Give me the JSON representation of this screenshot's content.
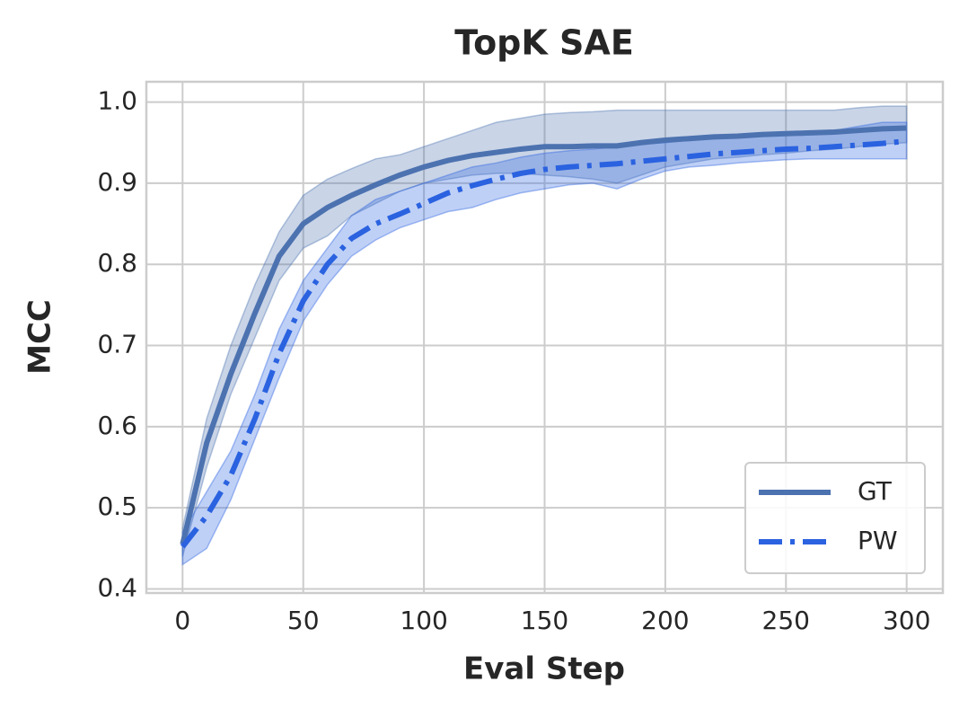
{
  "chart_data": {
    "type": "line",
    "title": "TopK SAE",
    "xlabel": "Eval Step",
    "ylabel": "MCC",
    "x": [
      0,
      10,
      20,
      30,
      40,
      50,
      60,
      70,
      80,
      90,
      100,
      110,
      120,
      130,
      140,
      150,
      160,
      170,
      180,
      190,
      200,
      210,
      220,
      230,
      240,
      250,
      260,
      270,
      280,
      290,
      300
    ],
    "series": [
      {
        "name": "GT",
        "color": "#4c72b0",
        "linestyle": "solid",
        "values": [
          0.455,
          0.58,
          0.665,
          0.74,
          0.81,
          0.85,
          0.87,
          0.885,
          0.898,
          0.91,
          0.92,
          0.928,
          0.934,
          0.938,
          0.942,
          0.945,
          0.945,
          0.946,
          0.946,
          0.95,
          0.953,
          0.955,
          0.957,
          0.958,
          0.96,
          0.961,
          0.962,
          0.963,
          0.965,
          0.967,
          0.968
        ],
        "lower": [
          0.44,
          0.55,
          0.64,
          0.71,
          0.78,
          0.82,
          0.835,
          0.86,
          0.875,
          0.89,
          0.9,
          0.905,
          0.91,
          0.912,
          0.912,
          0.91,
          0.908,
          0.905,
          0.9,
          0.91,
          0.92,
          0.925,
          0.93,
          0.932,
          0.935,
          0.937,
          0.94,
          0.942,
          0.945,
          0.948,
          0.95
        ],
        "upper": [
          0.475,
          0.61,
          0.7,
          0.775,
          0.84,
          0.885,
          0.905,
          0.918,
          0.93,
          0.935,
          0.945,
          0.955,
          0.965,
          0.975,
          0.98,
          0.985,
          0.987,
          0.988,
          0.99,
          0.99,
          0.99,
          0.99,
          0.99,
          0.99,
          0.99,
          0.99,
          0.99,
          0.99,
          0.993,
          0.995,
          0.995
        ]
      },
      {
        "name": "PW",
        "color": "#2a62e0",
        "linestyle": "dashdot",
        "values": [
          0.452,
          0.49,
          0.54,
          0.61,
          0.69,
          0.755,
          0.8,
          0.832,
          0.85,
          0.862,
          0.875,
          0.888,
          0.897,
          0.905,
          0.912,
          0.917,
          0.92,
          0.922,
          0.924,
          0.927,
          0.93,
          0.933,
          0.936,
          0.938,
          0.94,
          0.942,
          0.943,
          0.945,
          0.947,
          0.949,
          0.952
        ],
        "lower": [
          0.43,
          0.45,
          0.51,
          0.585,
          0.66,
          0.73,
          0.775,
          0.81,
          0.83,
          0.845,
          0.855,
          0.865,
          0.87,
          0.88,
          0.888,
          0.893,
          0.898,
          0.9,
          0.893,
          0.905,
          0.915,
          0.92,
          0.922,
          0.925,
          0.927,
          0.929,
          0.93,
          0.93,
          0.93,
          0.93,
          0.93
        ],
        "upper": [
          0.47,
          0.52,
          0.57,
          0.64,
          0.72,
          0.78,
          0.82,
          0.86,
          0.88,
          0.89,
          0.9,
          0.91,
          0.92,
          0.925,
          0.932,
          0.937,
          0.94,
          0.942,
          0.945,
          0.948,
          0.95,
          0.953,
          0.955,
          0.957,
          0.958,
          0.96,
          0.962,
          0.965,
          0.97,
          0.975,
          0.975
        ]
      }
    ],
    "xlim": [
      -15,
      315
    ],
    "ylim": [
      0.395,
      1.025
    ],
    "xticks": [
      0,
      50,
      100,
      150,
      200,
      250,
      300
    ],
    "yticks": [
      0.4,
      0.5,
      0.6,
      0.7,
      0.8,
      0.9,
      {
        "value": 1,
        "label": "1.0"
      }
    ],
    "grid": true,
    "legend": "lower right"
  }
}
